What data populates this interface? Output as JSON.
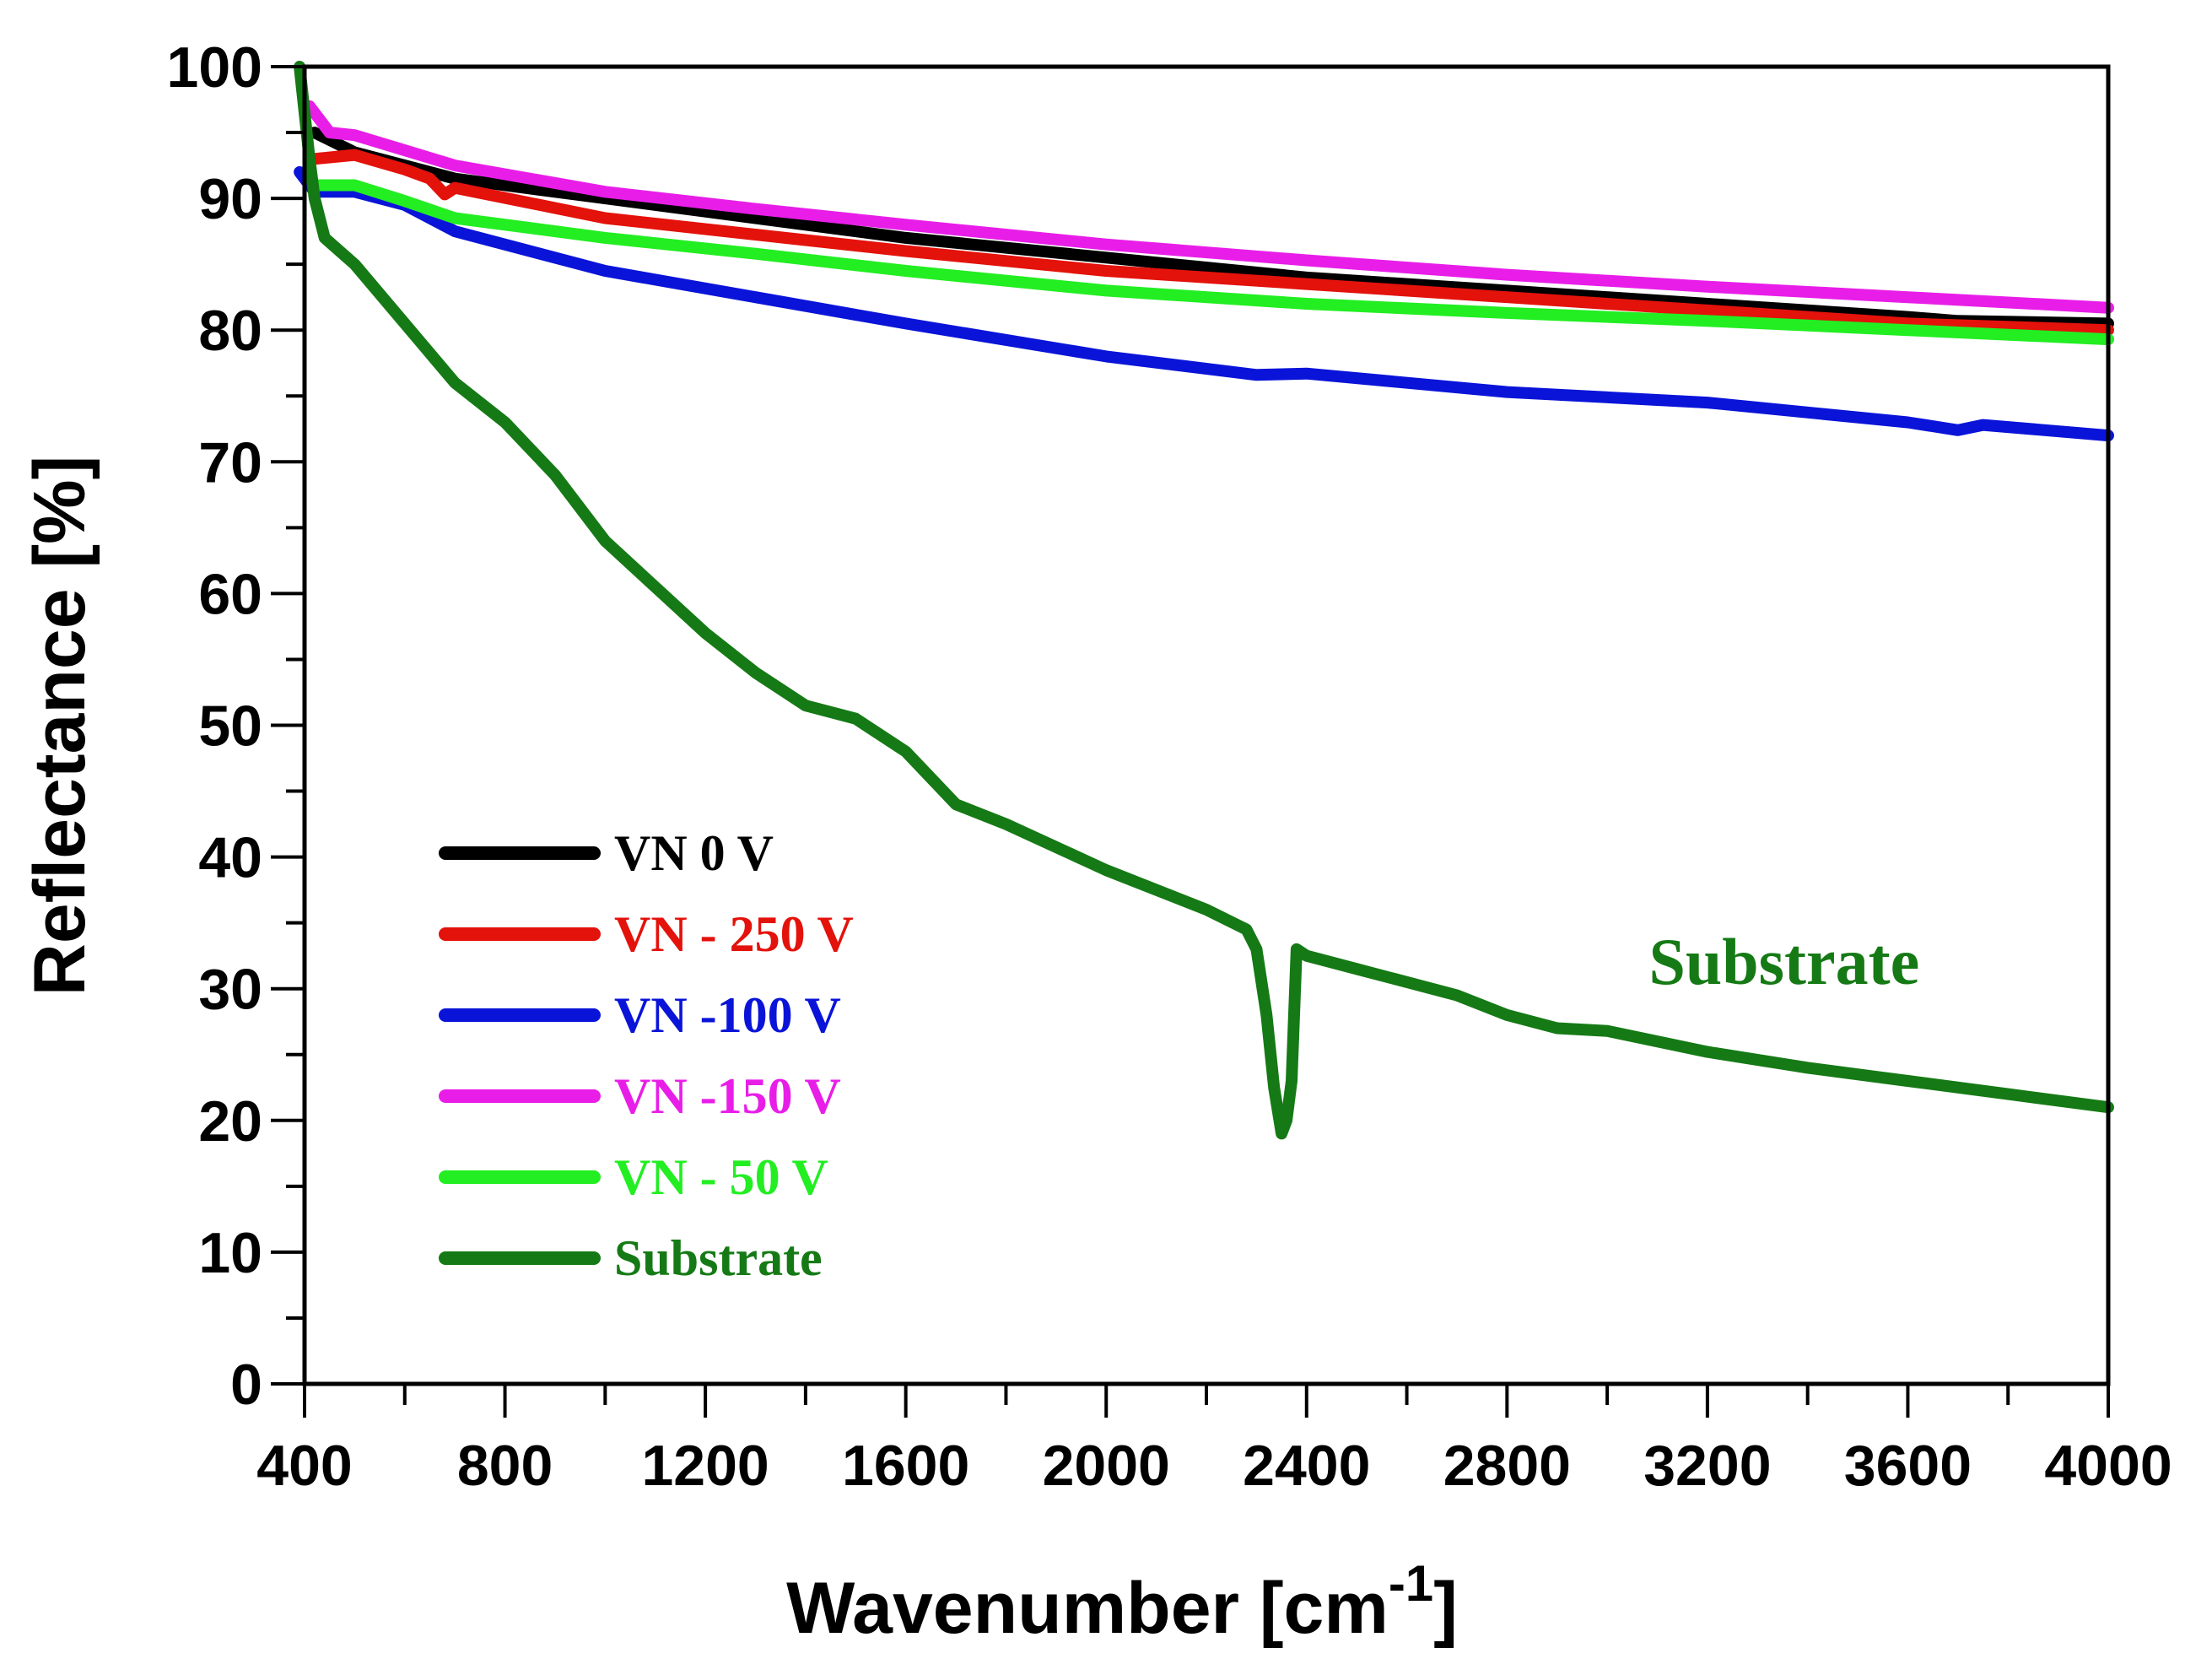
{
  "chart_data": {
    "type": "line",
    "title": "",
    "xlabel": "Wavenumber [cm",
    "xlabel_sup": "-1",
    "xlabel_close": "]",
    "ylabel": "Reflectance [%]",
    "xlim": [
      400,
      4000
    ],
    "ylim": [
      0,
      100
    ],
    "grid": false,
    "x_ticks": [
      400,
      800,
      1200,
      1600,
      2000,
      2400,
      2800,
      3200,
      3600,
      4000
    ],
    "x_tick_labels": [
      "400",
      "800",
      "1200",
      "1600",
      "2000",
      "2400",
      "2800",
      "3200",
      "3600",
      "4000"
    ],
    "x_minor_step": 200,
    "y_ticks": [
      0,
      10,
      20,
      30,
      40,
      50,
      60,
      70,
      80,
      90,
      100
    ],
    "y_tick_labels": [
      "0",
      "10",
      "20",
      "30",
      "40",
      "50",
      "60",
      "70",
      "80",
      "90",
      "100"
    ],
    "y_minor_step": 5,
    "legend_position": "lower-left",
    "series": [
      {
        "name": "VN 0 V",
        "color": "#000000",
        "x": [
          420,
          500,
          650,
          700,
          1000,
          1200,
          1600,
          2000,
          2400,
          2800,
          3200,
          3600,
          3700,
          4000
        ],
        "y": [
          95,
          93.5,
          92,
          91.5,
          90,
          89,
          87,
          85.5,
          84,
          83,
          82,
          81,
          80.7,
          80.5
        ]
      },
      {
        "name": "VN - 250 V",
        "color": "#e3120b",
        "x": [
          420,
          500,
          600,
          650,
          680,
          700,
          1000,
          1600,
          2000,
          2400,
          2800,
          3200,
          3600,
          4000
        ],
        "y": [
          93,
          93.3,
          92.2,
          91.5,
          90.3,
          90.8,
          88.5,
          86,
          84.5,
          83.5,
          82.5,
          81.5,
          80.5,
          80
        ]
      },
      {
        "name": "VN -100 V",
        "color": "#0a14d8",
        "x": [
          390,
          420,
          500,
          600,
          700,
          1000,
          1300,
          1600,
          2000,
          2300,
          2400,
          2800,
          3200,
          3600,
          3700,
          3750,
          4000
        ],
        "y": [
          92,
          90.5,
          90.5,
          89.5,
          87.5,
          84.5,
          82.5,
          80.5,
          78,
          76.6,
          76.7,
          75.3,
          74.5,
          73,
          72.4,
          72.8,
          72
        ]
      },
      {
        "name": "VN -150 V",
        "color": "#e81ee8",
        "x": [
          410,
          450,
          500,
          700,
          1000,
          1300,
          1600,
          2000,
          2400,
          2800,
          3200,
          3600,
          4000
        ],
        "y": [
          97,
          95,
          94.8,
          92.5,
          90.5,
          89.2,
          88,
          86.5,
          85.3,
          84.2,
          83.3,
          82.5,
          81.7
        ]
      },
      {
        "name": "VN - 50 V",
        "color": "#22ee22",
        "x": [
          420,
          500,
          600,
          700,
          1000,
          1300,
          1600,
          2000,
          2400,
          2800,
          3200,
          3600,
          4000
        ],
        "y": [
          91,
          91,
          89.8,
          88.5,
          87,
          85.8,
          84.5,
          83,
          82,
          81.3,
          80.7,
          80,
          79.3
        ]
      },
      {
        "name": "Substrate",
        "color": "#157a15",
        "x": [
          390,
          410,
          420,
          440,
          500,
          600,
          700,
          800,
          900,
          1000,
          1100,
          1200,
          1300,
          1400,
          1500,
          1600,
          1700,
          1800,
          2000,
          2200,
          2280,
          2300,
          2320,
          2335,
          2350,
          2360,
          2370,
          2380,
          2400,
          2500,
          2700,
          2800,
          2900,
          3000,
          3200,
          3400,
          3600,
          3800,
          4000
        ],
        "y": [
          100,
          93,
          90,
          87,
          85,
          80.5,
          76,
          73,
          69,
          64,
          60.5,
          57,
          54,
          51.5,
          50.5,
          48,
          44,
          42.5,
          39,
          36,
          34.5,
          33,
          28,
          22.5,
          19,
          20,
          23,
          33,
          32.5,
          31.5,
          29.5,
          28,
          27,
          26.8,
          25.2,
          24,
          23,
          22,
          21
        ]
      }
    ],
    "legend": [
      {
        "label": "VN 0 V",
        "color": "#000000"
      },
      {
        "label": "VN - 250 V",
        "color": "#e3120b"
      },
      {
        "label": "VN -100 V",
        "color": "#0a14d8"
      },
      {
        "label": "VN -150 V",
        "color": "#e81ee8"
      },
      {
        "label": "VN - 50 V",
        "color": "#22ee22"
      },
      {
        "label": "Substrate",
        "color": "#157a15"
      }
    ],
    "annotations": [
      {
        "text": "Substrate",
        "x": 3100,
        "y": 31,
        "color": "#157a15"
      }
    ]
  }
}
